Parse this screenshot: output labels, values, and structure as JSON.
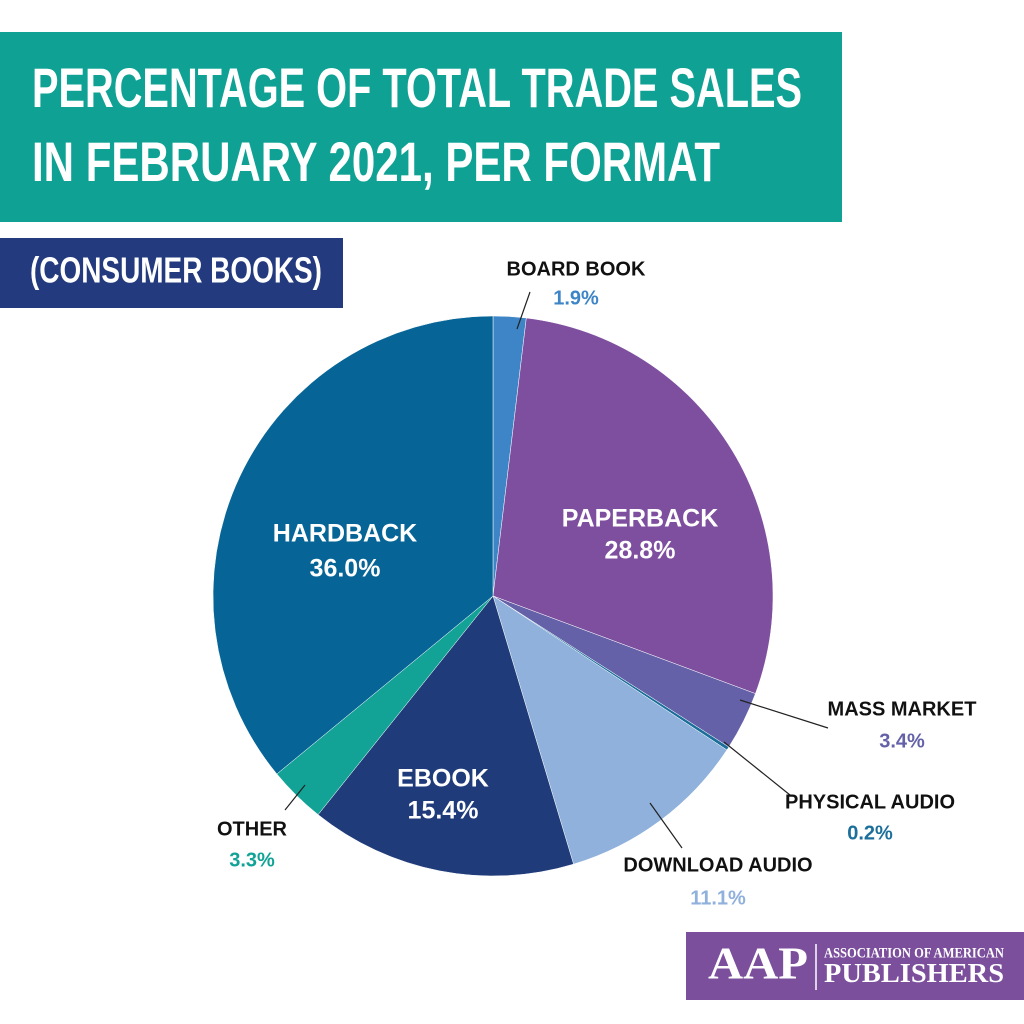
{
  "chart_data": {
    "type": "pie",
    "title": [
      "PERCENTAGE OF TOTAL TRADE SALES",
      "IN FEBRUARY 2021, PER FORMAT"
    ],
    "subtitle": "(CONSUMER BOOKS)",
    "categories": [
      "BOARD BOOK",
      "PAPERBACK",
      "MASS MARKET",
      "PHYSICAL AUDIO",
      "DOWNLOAD AUDIO",
      "EBOOK",
      "OTHER",
      "HARDBACK"
    ],
    "values": [
      1.9,
      28.8,
      3.4,
      0.2,
      11.1,
      15.4,
      3.3,
      36.0
    ],
    "value_labels": [
      "1.9%",
      "28.8%",
      "3.4%",
      "0.2%",
      "11.1%",
      "15.4%",
      "3.3%",
      "36.0%"
    ],
    "colors": [
      "#3d85c6",
      "#7f4f9f",
      "#6461a8",
      "#1b6f9a",
      "#8fb1dc",
      "#1f3b7a",
      "#12a396",
      "#066596"
    ]
  },
  "logo": {
    "short": "AAP",
    "line1": "ASSOCIATION OF AMERICAN",
    "line2": "PUBLISHERS"
  }
}
